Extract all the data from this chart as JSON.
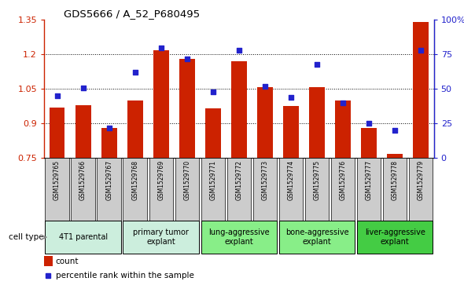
{
  "title": "GDS5666 / A_52_P680495",
  "samples": [
    "GSM1529765",
    "GSM1529766",
    "GSM1529767",
    "GSM1529768",
    "GSM1529769",
    "GSM1529770",
    "GSM1529771",
    "GSM1529772",
    "GSM1529773",
    "GSM1529774",
    "GSM1529775",
    "GSM1529776",
    "GSM1529777",
    "GSM1529778",
    "GSM1529779"
  ],
  "counts": [
    0.97,
    0.98,
    0.88,
    1.0,
    1.22,
    1.18,
    0.965,
    1.17,
    1.06,
    0.975,
    1.06,
    1.0,
    0.88,
    0.77,
    1.34
  ],
  "percentiles": [
    45,
    51,
    22,
    62,
    80,
    72,
    48,
    78,
    52,
    44,
    68,
    40,
    25,
    20,
    78
  ],
  "ylim_left": [
    0.75,
    1.35
  ],
  "ylim_right": [
    0,
    100
  ],
  "yticks_left": [
    0.75,
    0.9,
    1.05,
    1.2,
    1.35
  ],
  "ytick_labels_left": [
    "0.75",
    "0.9",
    "1.05",
    "1.2",
    "1.35"
  ],
  "yticks_right": [
    0,
    25,
    50,
    75,
    100
  ],
  "ytick_labels_right": [
    "0",
    "25",
    "50",
    "75",
    "100%"
  ],
  "bar_color": "#cc2200",
  "dot_color": "#2222cc",
  "gridline_color": "#000000",
  "cell_groups": [
    {
      "label": "4T1 parental",
      "start": 0,
      "end": 3,
      "color": "#cceecc"
    },
    {
      "label": "primary tumor\nexplant",
      "start": 3,
      "end": 6,
      "color": "#cceecc"
    },
    {
      "label": "lung-aggressive\nexplant",
      "start": 6,
      "end": 9,
      "color": "#88dd88"
    },
    {
      "label": "bone-aggressive\nexplant",
      "start": 9,
      "end": 12,
      "color": "#88dd88"
    },
    {
      "label": "liver-aggressive\nexplant",
      "start": 12,
      "end": 15,
      "color": "#33cc33"
    }
  ],
  "group_colors": [
    "#cceedd",
    "#cceedd",
    "#88ee88",
    "#88ee88",
    "#44cc44"
  ],
  "sample_box_color": "#cccccc",
  "legend_count_label": "count",
  "legend_pct_label": "percentile rank within the sample",
  "cell_type_label": "cell type",
  "bar_width": 0.6
}
